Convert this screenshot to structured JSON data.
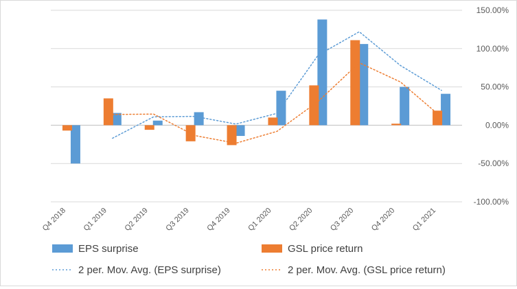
{
  "chart_data": {
    "type": "bar",
    "categories": [
      "Q4 2018",
      "Q1 2019",
      "Q2 2019",
      "Q3 2019",
      "Q4 2019",
      "Q1 2020",
      "Q2 2020",
      "Q3 2020",
      "Q4 2020",
      "Q1 2021"
    ],
    "series": [
      {
        "name": "EPS surprise",
        "kind": "bar",
        "color": "#5b9bd5",
        "values": [
          -50,
          16,
          6,
          17,
          -14,
          45,
          138,
          106,
          50,
          41
        ]
      },
      {
        "name": "GSL price return",
        "kind": "bar",
        "color": "#ed7d31",
        "values": [
          -7,
          35,
          -6,
          -21,
          -26,
          10,
          52,
          111,
          2,
          19
        ]
      },
      {
        "name": "2 per. Mov. Avg. (EPS surprise)",
        "kind": "line",
        "style": "dotted",
        "color": "#5b9bd5",
        "values": [
          null,
          -17,
          11,
          11.5,
          1.5,
          15.5,
          91.5,
          122,
          78,
          45.5
        ]
      },
      {
        "name": "2 per. Mov. Avg. (GSL price return)",
        "kind": "line",
        "style": "dotted",
        "color": "#ed7d31",
        "values": [
          null,
          14,
          14.5,
          -13.5,
          -23.5,
          -8,
          31,
          81.5,
          56.5,
          10.5
        ]
      }
    ],
    "y_axis": {
      "position": "right",
      "ticks": [
        150,
        100,
        50,
        0,
        -50,
        -100
      ],
      "tick_labels": [
        "150.00%",
        "100.00%",
        "50.00%",
        "0.00%",
        "-50.00%",
        "-100.00%"
      ],
      "ylim": [
        -100,
        150
      ]
    },
    "xlabel": "",
    "ylabel": "",
    "title": "",
    "grid": true,
    "legend_placement": "bottom"
  }
}
